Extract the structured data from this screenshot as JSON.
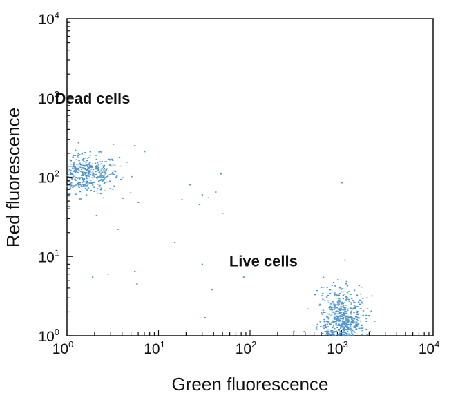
{
  "chart_data": {
    "type": "scatter",
    "title": "",
    "xlabel": "Green fluorescence",
    "ylabel": "Red fluorescence",
    "xscale": "log",
    "yscale": "log",
    "xlim": [
      1,
      10000
    ],
    "ylim": [
      1,
      10000
    ],
    "grid": false,
    "point_color": "#4f95cc",
    "x_ticks": [
      {
        "base": "10",
        "exp": "0",
        "value": 1
      },
      {
        "base": "10",
        "exp": "1",
        "value": 10
      },
      {
        "base": "10",
        "exp": "2",
        "value": 100
      },
      {
        "base": "10",
        "exp": "3",
        "value": 1000
      },
      {
        "base": "10",
        "exp": "4",
        "value": 10000
      }
    ],
    "y_ticks": [
      {
        "base": "10",
        "exp": "0",
        "value": 1
      },
      {
        "base": "10",
        "exp": "1",
        "value": 10
      },
      {
        "base": "10",
        "exp": "2",
        "value": 100
      },
      {
        "base": "10",
        "exp": "3",
        "value": 1000
      },
      {
        "base": "10",
        "exp": "4",
        "value": 10000
      }
    ],
    "annotations": [
      {
        "text": "Dead cells",
        "x": 1.9,
        "y": 850
      },
      {
        "text": "Live cells",
        "x": 140,
        "y": 7.5
      }
    ],
    "clusters": [
      {
        "label": "Dead cells",
        "x_center": 1.6,
        "x_spread": 0.18,
        "y_center": 110,
        "y_spread": 0.12,
        "count": 420
      },
      {
        "label": "Live cells",
        "x_center": 1000,
        "x_spread": 0.13,
        "y_center": 1.5,
        "y_spread": 0.16,
        "count": 520
      }
    ],
    "scattered_points": [
      {
        "x": 5.5,
        "y": 250
      },
      {
        "x": 7,
        "y": 210
      },
      {
        "x": 3.2,
        "y": 260
      },
      {
        "x": 4.5,
        "y": 155
      },
      {
        "x": 2.1,
        "y": 33
      },
      {
        "x": 3.6,
        "y": 22
      },
      {
        "x": 2.5,
        "y": 55
      },
      {
        "x": 6,
        "y": 48
      },
      {
        "x": 15,
        "y": 15
      },
      {
        "x": 5.5,
        "y": 6.5
      },
      {
        "x": 5.8,
        "y": 4.5
      },
      {
        "x": 2.8,
        "y": 6
      },
      {
        "x": 1.9,
        "y": 5.5
      },
      {
        "x": 22,
        "y": 80
      },
      {
        "x": 30,
        "y": 60
      },
      {
        "x": 35,
        "y": 55
      },
      {
        "x": 42,
        "y": 65
      },
      {
        "x": 48,
        "y": 110
      },
      {
        "x": 50,
        "y": 35
      },
      {
        "x": 30,
        "y": 8
      },
      {
        "x": 38,
        "y": 3.8
      },
      {
        "x": 32,
        "y": 1.7
      },
      {
        "x": 85,
        "y": 5.5
      },
      {
        "x": 1000,
        "y": 85
      },
      {
        "x": 18,
        "y": 52
      },
      {
        "x": 28,
        "y": 45
      }
    ]
  }
}
